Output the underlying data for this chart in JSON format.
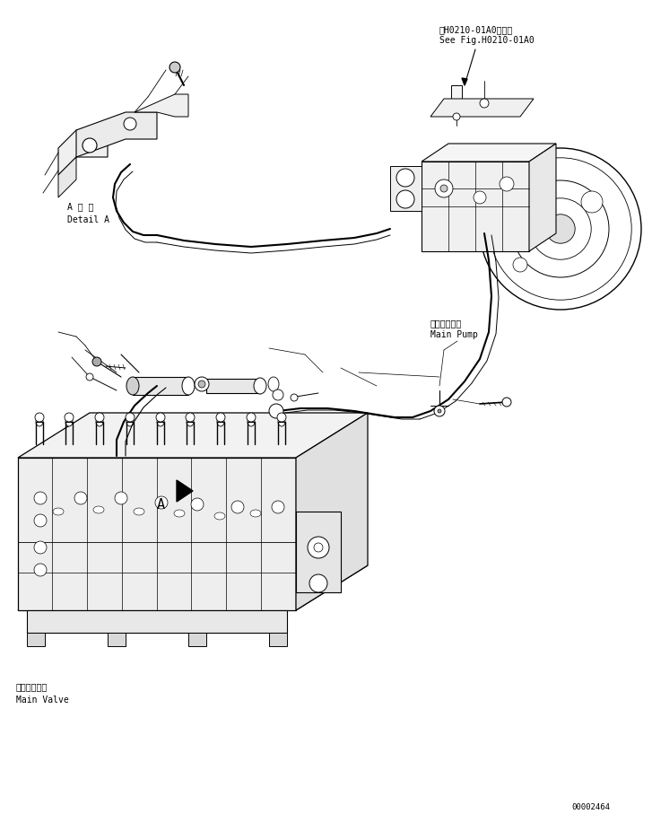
{
  "bg_color": "#ffffff",
  "line_color": "#000000",
  "fig_width": 7.27,
  "fig_height": 9.07,
  "dpi": 100,
  "label_top_right_jp": "第H0210-01A0図参照",
  "label_top_right_en": "See Fig.H0210-01A0",
  "label_detail_jp": "A 詳 細",
  "label_detail_en": "Detail A",
  "label_main_pump_jp": "メインポンプ",
  "label_main_pump_en": "Main Pump",
  "label_main_valve_jp": "メインバルブ",
  "label_main_valve_en": "Main Valve",
  "page_num": "00002464",
  "font_size_label": 7,
  "font_size_page": 6.5
}
